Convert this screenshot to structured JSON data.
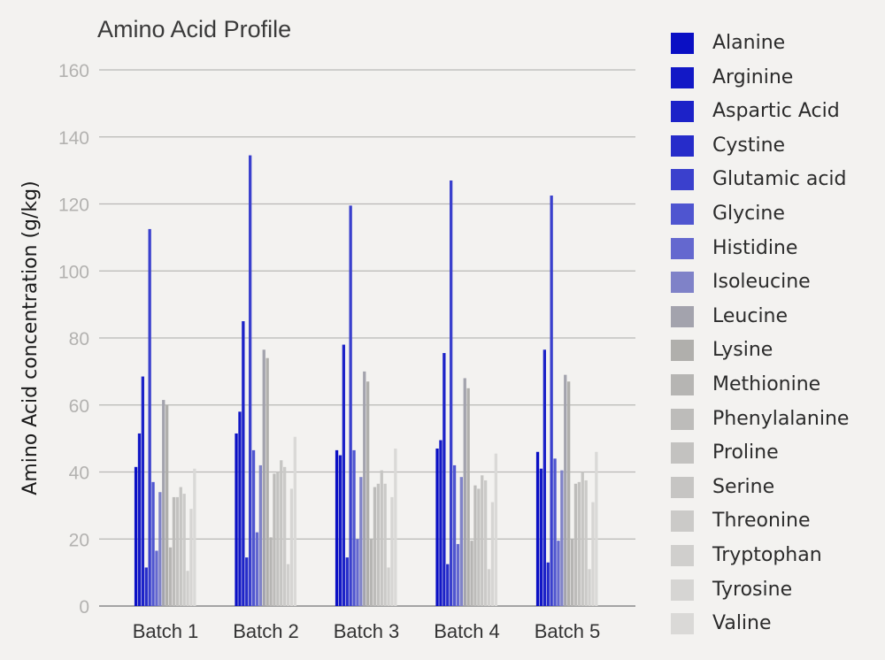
{
  "chart_data": {
    "type": "bar",
    "title": "Amino Acid Profile",
    "xlabel": "",
    "ylabel": "Amino Acid concentration (g/kg)",
    "ylim": [
      0,
      160
    ],
    "yticks": [
      0,
      20,
      40,
      60,
      80,
      100,
      120,
      140,
      160
    ],
    "grid": true,
    "legend_position": "right",
    "categories": [
      "Batch 1",
      "Batch 2",
      "Batch 3",
      "Batch 4",
      "Batch 5"
    ],
    "series": [
      {
        "name": "Alanine",
        "color": "#0a0fc4",
        "values": [
          41.5,
          51.5,
          46.5,
          47,
          46
        ]
      },
      {
        "name": "Arginine",
        "color": "#1218c6",
        "values": [
          51.5,
          58,
          45,
          49.5,
          41
        ]
      },
      {
        "name": "Aspartic Acid",
        "color": "#1c22c8",
        "values": [
          68.5,
          85,
          78,
          75.5,
          76.5
        ]
      },
      {
        "name": "Cystine",
        "color": "#262cca",
        "values": [
          11.5,
          14.5,
          14.5,
          12.5,
          13
        ]
      },
      {
        "name": "Glutamic acid",
        "color": "#3a40cd",
        "values": [
          112.5,
          134.5,
          119.5,
          127,
          122.5
        ]
      },
      {
        "name": "Glycine",
        "color": "#4f55d0",
        "values": [
          37,
          46.5,
          46.5,
          42,
          44
        ]
      },
      {
        "name": "Histidine",
        "color": "#6468cf",
        "values": [
          16.5,
          22,
          20,
          18.5,
          19.5
        ]
      },
      {
        "name": "Isoleucine",
        "color": "#7f82c8",
        "values": [
          34,
          42,
          38.5,
          38.5,
          40.5
        ]
      },
      {
        "name": "Leucine",
        "color": "#a3a3ad",
        "values": [
          61.5,
          76.5,
          70,
          68,
          69
        ]
      },
      {
        "name": "Lysine",
        "color": "#b0afac",
        "values": [
          60,
          74,
          67,
          65,
          67
        ]
      },
      {
        "name": "Methionine",
        "color": "#b6b5b3",
        "values": [
          17.5,
          20.5,
          20,
          19.5,
          20
        ]
      },
      {
        "name": "Phenylalanine",
        "color": "#bdbcba",
        "values": [
          32.5,
          39.5,
          35.5,
          36,
          36.5
        ]
      },
      {
        "name": "Proline",
        "color": "#c3c2c0",
        "values": [
          32.5,
          40,
          36.5,
          35,
          37
        ]
      },
      {
        "name": "Serine",
        "color": "#c6c5c3",
        "values": [
          35.5,
          43.5,
          40.5,
          39,
          40
        ]
      },
      {
        "name": "Threonine",
        "color": "#cbcac8",
        "values": [
          33.5,
          41.5,
          36.5,
          37.5,
          37.5
        ]
      },
      {
        "name": "Tryptophan",
        "color": "#d0cfcd",
        "values": [
          10.5,
          12.5,
          11.5,
          11,
          11
        ]
      },
      {
        "name": "Tyrosine",
        "color": "#d6d5d3",
        "values": [
          29,
          35,
          32.5,
          31,
          31
        ]
      },
      {
        "name": "Valine",
        "color": "#dad9d7",
        "values": [
          41,
          50.5,
          47,
          45.5,
          46
        ]
      }
    ]
  }
}
